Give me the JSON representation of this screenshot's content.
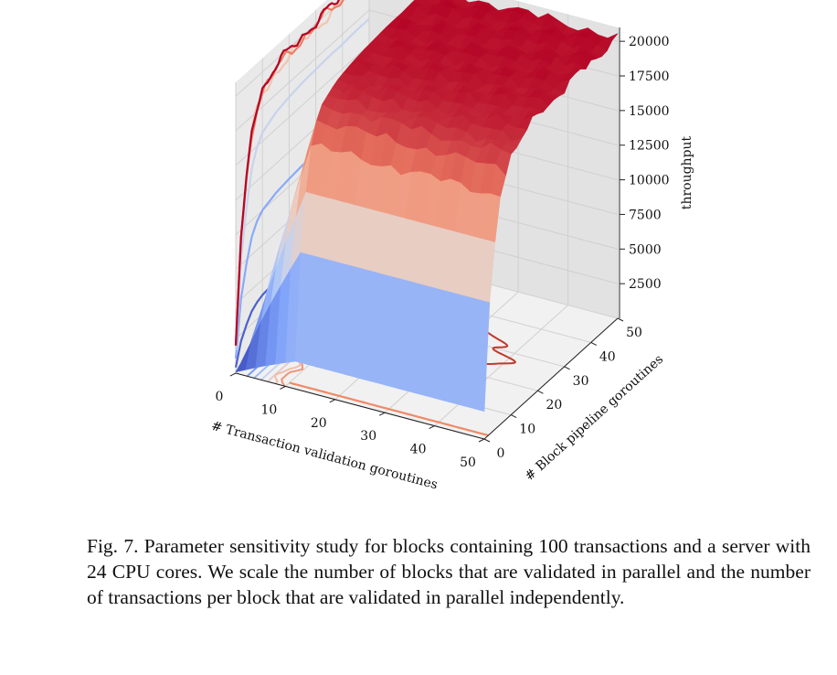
{
  "chart_data": {
    "type": "surface3d",
    "xlabel": "# Transaction validation goroutines",
    "ylabel": "# Block pipeline goroutines",
    "zlabel": "throughput",
    "x_ticks": [
      "0",
      "10",
      "20",
      "30",
      "40",
      "50"
    ],
    "y_ticks": [
      "0",
      "10",
      "20",
      "30",
      "40",
      "50"
    ],
    "z_ticks": [
      "2500",
      "5000",
      "7500",
      "10000",
      "12500",
      "15000",
      "17500",
      "20000"
    ],
    "xlim": [
      0,
      50
    ],
    "ylim": [
      0,
      50
    ],
    "zlim": [
      0,
      21000
    ],
    "colormap": "coolwarm",
    "colormap_stops": [
      "#3b4cc0",
      "#7b9ff9",
      "#c0d4f5",
      "#f2cbb7",
      "#ee8468",
      "#b40426"
    ],
    "surface_y_values": [
      0,
      2,
      4,
      6,
      8,
      10,
      15,
      20,
      25,
      30,
      35,
      40,
      45,
      50
    ],
    "throughput_at_x50_by_y": [
      2000,
      9500,
      13500,
      16500,
      18000,
      18800,
      19500,
      19800,
      20000,
      20100,
      20200,
      20200,
      20300,
      20300
    ],
    "saturation_x": 12,
    "grid": true
  },
  "caption": "Fig. 7.  Parameter sensitivity study for blocks containing 100 transactions and a server with 24 CPU cores. We scale the number of blocks that are validated in parallel and the number of transactions per block that are validated in parallel independently."
}
